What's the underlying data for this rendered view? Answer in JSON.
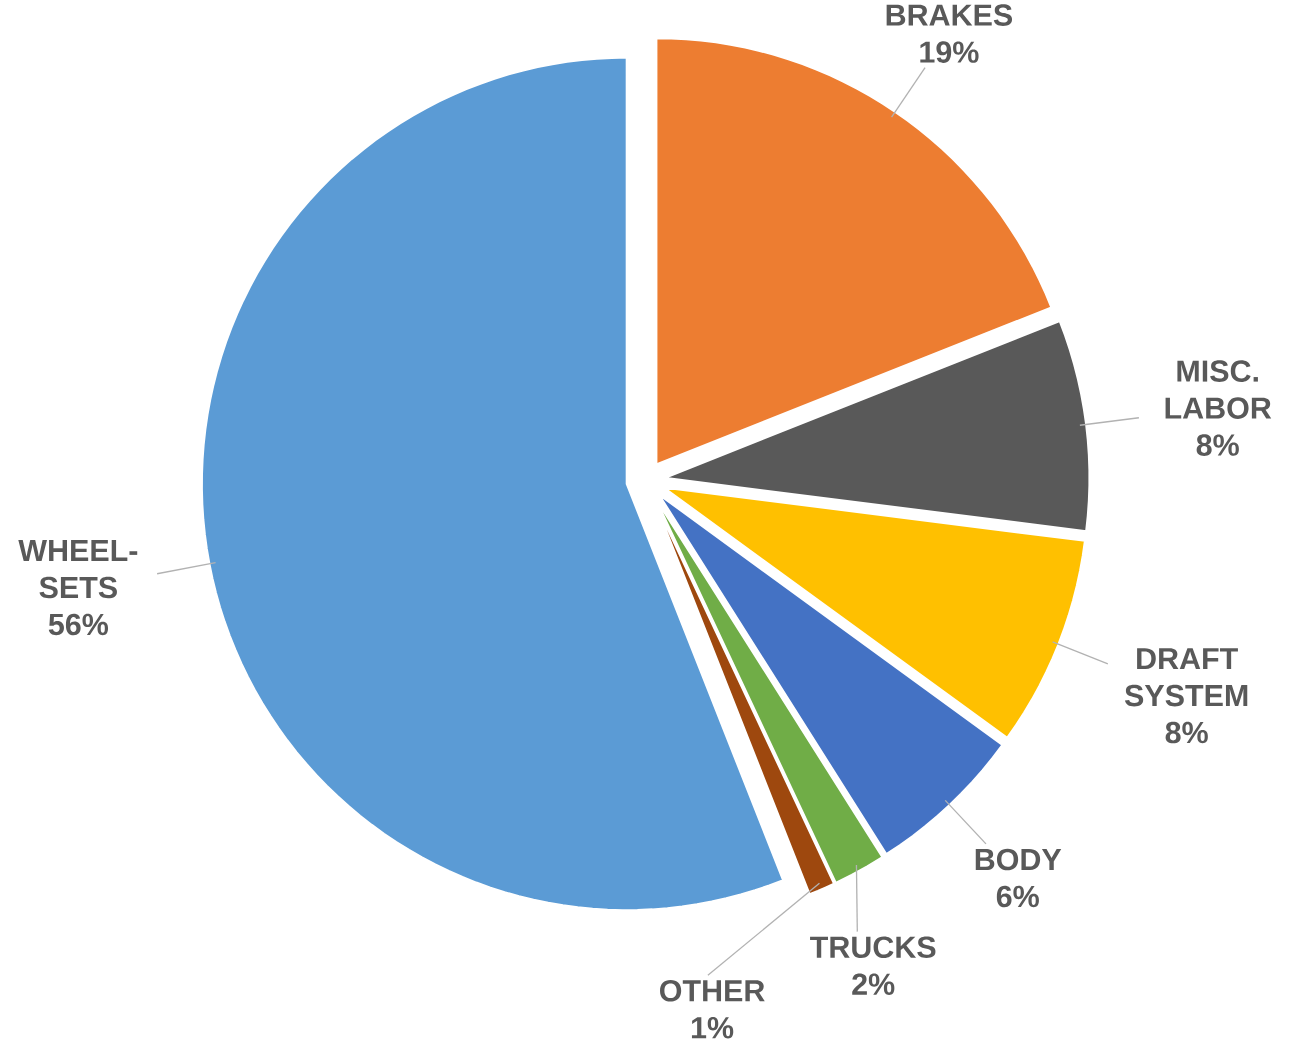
{
  "chart_data": {
    "type": "pie",
    "categories": [
      "BRAKES",
      "MISC. LABOR",
      "DRAFT SYSTEM",
      "BODY",
      "TRUCKS",
      "OTHER",
      "WHEEL-SETS"
    ],
    "values": [
      19,
      8,
      8,
      6,
      2,
      1,
      56
    ],
    "value_labels": [
      "19%",
      "8%",
      "8%",
      "6%",
      "2%",
      "1%",
      "56%"
    ],
    "colors": [
      "#ed7d31",
      "#595959",
      "#ffc000",
      "#4472c4",
      "#70ad47",
      "#9e480e",
      "#5b9bd5"
    ]
  }
}
